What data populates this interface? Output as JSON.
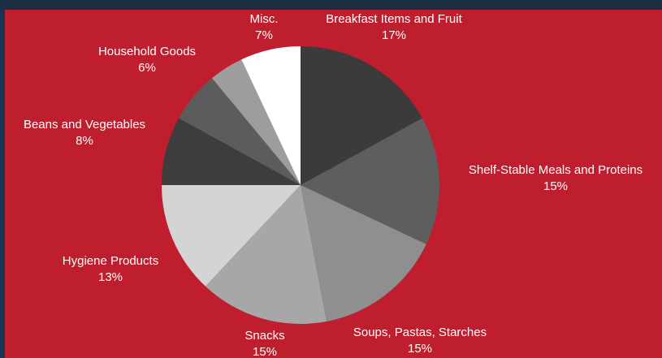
{
  "chart_data": {
    "type": "pie",
    "start_angle_deg": 0,
    "direction": "clockwise",
    "slices": [
      {
        "label": "Breakfast Items and Fruit",
        "value": 17,
        "value_label": "17%",
        "color": "#3b3b3b"
      },
      {
        "label": "Shelf-Stable Meals and Proteins",
        "value": 15,
        "value_label": "15%",
        "color": "#5e5e5e"
      },
      {
        "label": "Soups, Pastas, Starches",
        "value": 15,
        "value_label": "15%",
        "color": "#8f8f8f"
      },
      {
        "label": "Snacks",
        "value": 15,
        "value_label": "15%",
        "color": "#a7a7a7"
      },
      {
        "label": "Hygiene Products",
        "value": 13,
        "value_label": "13%",
        "color": "#d4d4d4"
      },
      {
        "label": "Beans and Vegetables",
        "value": 8,
        "value_label": "8%",
        "color": "#3d3d3d"
      },
      {
        "label": "Household Goods",
        "value": 6,
        "value_label": "6%",
        "color": "#5c5c5c"
      },
      {
        "label": "",
        "value": 4,
        "value_label": "",
        "color": "#9d9d9d"
      },
      {
        "label": "Misc.",
        "value": 7,
        "value_label": "7%",
        "color": "#ffffff"
      }
    ]
  },
  "colors": {
    "panel": "#be1e2d",
    "background": "#1b2f45",
    "label_text": "#ffffff"
  }
}
